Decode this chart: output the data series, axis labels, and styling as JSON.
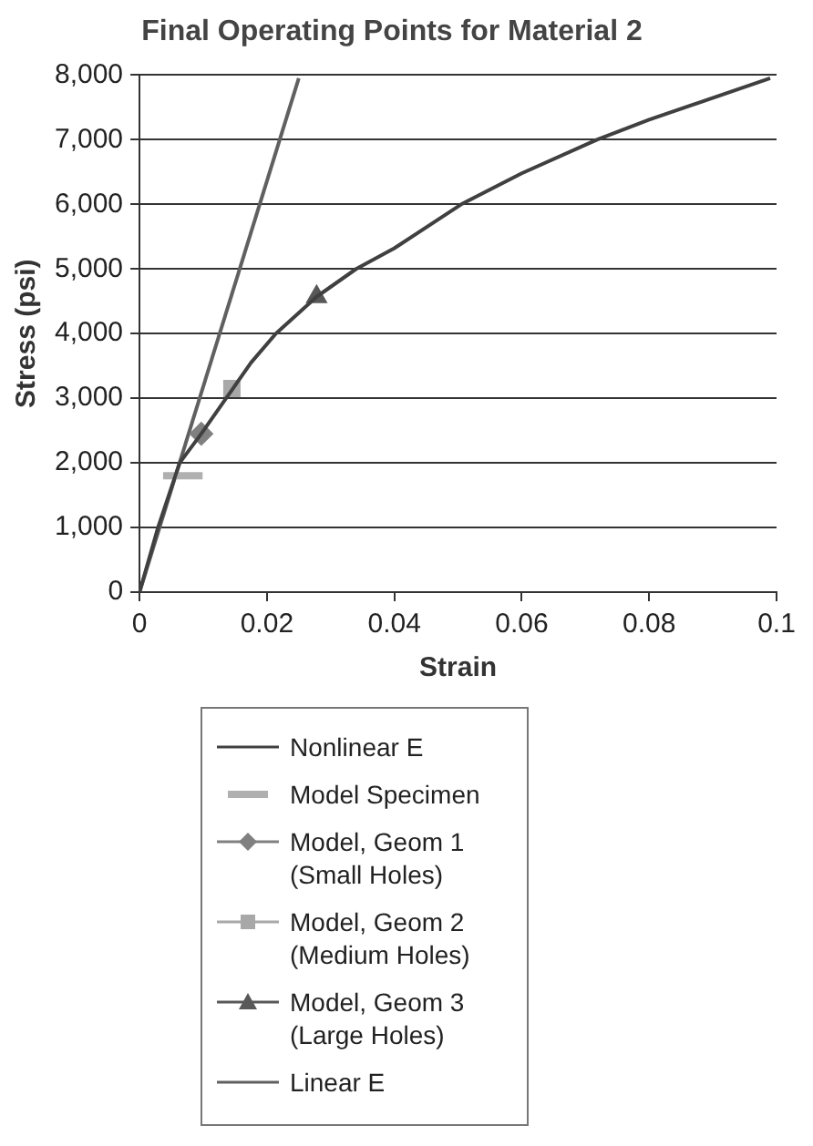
{
  "chart_data": {
    "type": "line",
    "title": "Final Operating Points for Material 2",
    "xlabel": "Strain",
    "ylabel": "Stress (psi)",
    "xlim": [
      0,
      0.1
    ],
    "xticks": [
      0,
      0.02,
      0.04,
      0.06,
      0.08,
      {
        "value": 0.1,
        "label": "0.1"
      }
    ],
    "ylim": [
      0,
      8000
    ],
    "yticks": [
      0,
      {
        "value": 1000,
        "label": "1,000"
      },
      {
        "value": 2000,
        "label": "2,000"
      },
      {
        "value": 3000,
        "label": "3,000"
      },
      {
        "value": 4000,
        "label": "4,000"
      },
      {
        "value": 5000,
        "label": "5,000"
      },
      {
        "value": 6000,
        "label": "6,000"
      },
      {
        "value": 7000,
        "label": "7,000"
      },
      {
        "value": 8000,
        "label": "8,000"
      }
    ],
    "grid": "y",
    "legend": "bottom",
    "series": [
      {
        "name": "Nonlinear E",
        "type": "line",
        "color": "#404040",
        "marker": "none",
        "x": [
          0,
          0.0029,
          0.0063,
          0.0097,
          0.0136,
          0.0175,
          0.0214,
          0.0278,
          0.034,
          0.04,
          0.0505,
          0.06,
          0.0718,
          0.08,
          0.099
        ],
        "values": [
          0,
          1000,
          2000,
          2450,
          3000,
          3550,
          4000,
          4570,
          5000,
          5320,
          6000,
          6480,
          7000,
          7310,
          7950
        ]
      },
      {
        "name": "Model Specimen",
        "type": "line",
        "color": "#b0b0b0",
        "marker": "none",
        "x": [
          0.0037,
          0.0099
        ],
        "values": [
          1800,
          1800
        ]
      },
      {
        "name": "Model, Geom 1 (Small Holes)",
        "type": "scatter",
        "color": "#808080",
        "marker": "diamond",
        "x": [
          0.0097
        ],
        "values": [
          2450
        ]
      },
      {
        "name": "Model, Geom 2 (Medium Holes)",
        "type": "scatter",
        "color": "#a8a8a8",
        "marker": "square",
        "x": [
          0.0145
        ],
        "values": [
          3150
        ]
      },
      {
        "name": "Model, Geom 3 (Large Holes)",
        "type": "scatter",
        "color": "#585858",
        "marker": "triangle",
        "x": [
          0.0278
        ],
        "values": [
          4570
        ]
      },
      {
        "name": "Linear E",
        "type": "line",
        "color": "#606060",
        "marker": "none",
        "x": [
          0,
          0.025
        ],
        "values": [
          0,
          7950
        ]
      }
    ]
  }
}
